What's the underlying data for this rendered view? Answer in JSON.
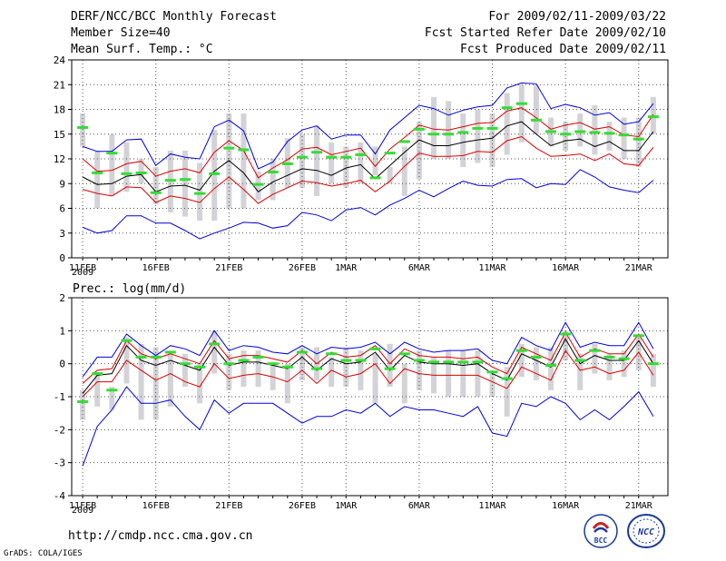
{
  "header": {
    "title": "DERF/NCC/BCC Monthly Forecast",
    "member_size": "Member Size=40",
    "variable": "Mean Surf. Temp.: °C",
    "period": "For 2009/02/11-2009/03/22",
    "fcst_started": "Fcst Started Refer Date 2009/02/10",
    "fcst_produced": "Fcst Produced Date 2009/02/11"
  },
  "footer": {
    "url": "http://cmdp.ncc.cma.gov.cn",
    "grads": "GrADS: COLA/IGES",
    "logo_left_text": "BCC",
    "logo_right_text": "NCC"
  },
  "colors": {
    "box": "#d3d3d7",
    "median": "#33dd33",
    "mean": "#000000",
    "std": "#dd0000",
    "extreme": "#0000dd",
    "grid": "#555555"
  },
  "chart_data": [
    {
      "type": "box-line",
      "title": "Mean Surf. Temp.: °C",
      "x": [
        1,
        2,
        3,
        4,
        5,
        6,
        7,
        8,
        9,
        10,
        11,
        12,
        13,
        14,
        15,
        16,
        17,
        18,
        19,
        20,
        21,
        22,
        23,
        24,
        25,
        26,
        27,
        28,
        29,
        30,
        31,
        32,
        33,
        34,
        35,
        36,
        37,
        38,
        39,
        40
      ],
      "xtick_labels": [
        "11FEB",
        "16FEB",
        "21FEB",
        "26FEB",
        "1MAR",
        "6MAR",
        "11MAR",
        "16MAR",
        "21MAR"
      ],
      "xtick_positions": [
        1,
        6,
        11,
        16,
        19,
        24,
        29,
        34,
        39
      ],
      "year_label": "2009",
      "ylim": [
        0,
        24
      ],
      "yticks": [
        0,
        3,
        6,
        9,
        12,
        15,
        18,
        21,
        24
      ],
      "box_low": [
        13.5,
        6,
        7.5,
        8,
        9,
        6.5,
        5.5,
        5,
        4.5,
        4.5,
        6,
        6,
        7,
        7,
        8.5,
        8.5,
        7.5,
        9,
        8.5,
        9,
        10,
        9,
        7.5,
        9.5,
        12,
        12,
        11,
        11.5,
        11,
        12.5,
        14,
        15,
        13.5,
        13,
        13.5,
        12.5,
        13,
        12,
        11,
        15
      ],
      "box_high": [
        17.5,
        13,
        15,
        14,
        12,
        11,
        13,
        13,
        11.5,
        15.5,
        17.5,
        17.5,
        10.5,
        12,
        14.5,
        15,
        16,
        14,
        13.5,
        14,
        13.5,
        11,
        13.5,
        16.5,
        19.5,
        19,
        17.5,
        18,
        17.5,
        20,
        21,
        21,
        17,
        16.5,
        17.5,
        18.5,
        16.5,
        17,
        17,
        19.5
      ],
      "median": [
        15.8,
        10.3,
        12.7,
        10.2,
        10.3,
        7.9,
        9.4,
        9.5,
        7.8,
        10.2,
        13.3,
        13.1,
        8.9,
        10.4,
        11.4,
        12.2,
        12.8,
        12.2,
        12.2,
        12.5,
        9.7,
        12.7,
        14.1,
        15.6,
        15.0,
        15.0,
        15.2,
        15.7,
        15.7,
        18.2,
        18.7,
        16.7,
        15.3,
        15.0,
        15.3,
        15.2,
        15.1,
        14.9,
        14.4,
        17.1
      ],
      "mean": [
        9.8,
        8.9,
        9.0,
        9.9,
        10.1,
        8.0,
        8.7,
        8.8,
        8.2,
        10.5,
        11.8,
        10.3,
        8.0,
        9.2,
        10.0,
        10.8,
        10.6,
        10.0,
        10.9,
        11.3,
        9.6,
        11.2,
        12.8,
        14.3,
        13.6,
        13.6,
        14.0,
        14.3,
        14.5,
        16.0,
        16.5,
        15.0,
        13.6,
        14.2,
        14.4,
        13.5,
        14.1,
        13.0,
        13.0,
        15.3
      ],
      "upper": [
        12.0,
        10.5,
        10.6,
        11.4,
        11.7,
        9.9,
        10.5,
        10.8,
        10.3,
        12.8,
        14.2,
        13.0,
        9.7,
        10.9,
        11.9,
        13.2,
        13.4,
        12.5,
        12.9,
        13.3,
        11.1,
        13.2,
        14.6,
        16.1,
        15.6,
        15.5,
        15.9,
        16.3,
        16.4,
        17.8,
        18.2,
        17.0,
        15.6,
        16.1,
        16.4,
        15.6,
        15.9,
        14.9,
        14.7,
        17.4
      ],
      "lower": [
        8.3,
        7.8,
        7.5,
        8.6,
        8.5,
        6.7,
        7.5,
        7.2,
        6.7,
        8.4,
        9.8,
        8.3,
        6.6,
        7.7,
        8.5,
        9.3,
        9.1,
        8.7,
        9.0,
        9.4,
        8.0,
        9.3,
        11.1,
        12.7,
        12.3,
        12.3,
        12.4,
        12.9,
        12.8,
        14.2,
        14.7,
        13.3,
        12.3,
        12.4,
        12.6,
        11.8,
        12.6,
        11.4,
        11.2,
        13.4
      ],
      "max": [
        13.5,
        12.9,
        12.9,
        14.3,
        14.4,
        11.2,
        12.6,
        12.2,
        12.0,
        15.9,
        16.7,
        15.4,
        10.8,
        11.6,
        14.1,
        15.5,
        16.0,
        14.4,
        14.9,
        14.9,
        12.6,
        15.5,
        17.0,
        18.5,
        18.1,
        17.3,
        17.9,
        18.3,
        18.5,
        20.6,
        21.2,
        21.1,
        18.1,
        18.6,
        18.2,
        17.3,
        17.6,
        16.2,
        16.5,
        18.7
      ],
      "min": [
        3.7,
        3.0,
        3.3,
        5.1,
        5.1,
        4.2,
        4.2,
        3.3,
        2.3,
        3.0,
        3.6,
        4.3,
        4.2,
        3.6,
        3.9,
        5.5,
        5.2,
        4.5,
        5.8,
        6.1,
        5.2,
        6.4,
        7.2,
        8.2,
        7.4,
        8.4,
        9.3,
        8.8,
        8.7,
        9.5,
        9.6,
        8.5,
        9.0,
        8.9,
        10.7,
        9.8,
        8.6,
        8.2,
        7.9,
        9.4
      ]
    },
    {
      "type": "box-line",
      "title": "Prec.: log(mm/d)",
      "x": [
        1,
        2,
        3,
        4,
        5,
        6,
        7,
        8,
        9,
        10,
        11,
        12,
        13,
        14,
        15,
        16,
        17,
        18,
        19,
        20,
        21,
        22,
        23,
        24,
        25,
        26,
        27,
        28,
        29,
        30,
        31,
        32,
        33,
        34,
        35,
        36,
        37,
        38,
        39,
        40
      ],
      "xtick_labels": [
        "11FEB",
        "16FEB",
        "21FEB",
        "26FEB",
        "1MAR",
        "6MAR",
        "11MAR",
        "16MAR",
        "21MAR"
      ],
      "xtick_positions": [
        1,
        6,
        11,
        16,
        19,
        24,
        29,
        34,
        39
      ],
      "year_label": "2009",
      "ylim": [
        -4,
        2
      ],
      "yticks": [
        -4,
        -3,
        -2,
        -1,
        0,
        1,
        2
      ],
      "box_low": [
        -1.7,
        -1.3,
        -1.4,
        -0.6,
        -1.7,
        -1.7,
        -1.3,
        -0.7,
        -1.2,
        -0.3,
        -0.8,
        -0.7,
        -0.7,
        -0.8,
        -1.2,
        -0.5,
        -0.5,
        -0.7,
        -0.7,
        -0.8,
        -1.2,
        -0.7,
        -1.2,
        -0.8,
        -0.9,
        -1.0,
        -1.0,
        -1.0,
        -1.0,
        -1.6,
        -0.4,
        -0.5,
        -0.8,
        0.1,
        -0.8,
        -0.3,
        -0.5,
        -0.4,
        -0.2,
        -0.7
      ],
      "box_high": [
        -0.8,
        -0.3,
        -0.7,
        0.8,
        0.6,
        0.5,
        0.3,
        0.3,
        0.0,
        1.0,
        0.3,
        0.4,
        0.4,
        0.0,
        0.0,
        0.5,
        0.5,
        0.2,
        0.5,
        0.4,
        0.3,
        0.6,
        0.0,
        0.4,
        0.2,
        0.4,
        0.4,
        0.4,
        -0.3,
        -0.1,
        0.6,
        0.5,
        0.5,
        1.0,
        0.3,
        0.6,
        0.3,
        0.4,
        0.8,
        0.3
      ],
      "median": [
        -1.15,
        -0.3,
        -0.8,
        0.7,
        0.2,
        0.2,
        0.35,
        0.0,
        -0.1,
        0.6,
        0.0,
        0.1,
        0.2,
        0.0,
        -0.1,
        0.35,
        -0.15,
        0.3,
        0.1,
        0.1,
        0.45,
        -0.15,
        0.3,
        0.1,
        0.05,
        0.05,
        0.05,
        0.05,
        -0.25,
        -0.45,
        0.4,
        0.2,
        -0.05,
        0.9,
        0.1,
        0.4,
        0.2,
        0.15,
        0.85,
        0.0
      ],
      "mean": [
        -0.9,
        -0.35,
        -0.3,
        0.55,
        0.1,
        -0.05,
        0.1,
        -0.05,
        -0.2,
        0.5,
        -0.05,
        0.05,
        0.05,
        -0.05,
        -0.15,
        0.2,
        -0.2,
        0.15,
        0.0,
        0.05,
        0.35,
        -0.2,
        0.25,
        0.05,
        0.0,
        0.0,
        -0.05,
        0.0,
        -0.3,
        -0.5,
        0.3,
        0.1,
        -0.1,
        0.75,
        0.0,
        0.25,
        0.1,
        0.1,
        0.7,
        0.0
      ],
      "upper": [
        -0.6,
        -0.2,
        -0.15,
        0.7,
        0.3,
        0.15,
        0.3,
        0.15,
        0.0,
        0.7,
        0.15,
        0.25,
        0.25,
        0.15,
        0.05,
        0.4,
        0.0,
        0.35,
        0.2,
        0.25,
        0.55,
        0.0,
        0.45,
        0.25,
        0.2,
        0.2,
        0.15,
        0.2,
        -0.1,
        -0.3,
        0.5,
        0.3,
        0.1,
        0.95,
        0.2,
        0.45,
        0.3,
        0.3,
        0.9,
        0.2
      ],
      "lower": [
        -1.0,
        -0.55,
        -0.55,
        0.1,
        -0.2,
        -0.5,
        -0.3,
        -0.55,
        -0.7,
        0.0,
        -0.45,
        -0.35,
        -0.3,
        -0.4,
        -0.55,
        -0.2,
        -0.6,
        -0.2,
        -0.4,
        -0.3,
        0.0,
        -0.6,
        -0.15,
        -0.3,
        -0.35,
        -0.35,
        -0.35,
        -0.35,
        -0.55,
        -0.75,
        -0.1,
        -0.3,
        -0.5,
        0.4,
        -0.2,
        -0.1,
        -0.3,
        -0.2,
        0.35,
        -0.35
      ],
      "max": [
        -0.4,
        0.2,
        0.2,
        0.9,
        0.55,
        0.25,
        0.55,
        0.45,
        0.25,
        1.0,
        0.4,
        0.55,
        0.5,
        0.35,
        0.3,
        0.55,
        0.3,
        0.5,
        0.45,
        0.5,
        0.65,
        0.3,
        0.65,
        0.45,
        0.35,
        0.4,
        0.4,
        0.45,
        0.1,
        0.0,
        0.8,
        0.55,
        0.4,
        1.25,
        0.5,
        0.65,
        0.55,
        0.55,
        1.25,
        0.45
      ],
      "min": [
        -3.1,
        -1.9,
        -1.4,
        -0.7,
        -1.2,
        -1.2,
        -1.1,
        -1.6,
        -2.0,
        -1.1,
        -1.5,
        -1.2,
        -1.2,
        -1.2,
        -1.5,
        -1.8,
        -1.6,
        -1.6,
        -1.4,
        -1.5,
        -1.2,
        -1.6,
        -1.3,
        -1.4,
        -1.4,
        -1.5,
        -1.6,
        -1.3,
        -2.1,
        -2.2,
        -1.2,
        -1.3,
        -1.0,
        -1.2,
        -1.7,
        -1.4,
        -1.7,
        -1.3,
        -0.85,
        -1.6
      ]
    }
  ]
}
